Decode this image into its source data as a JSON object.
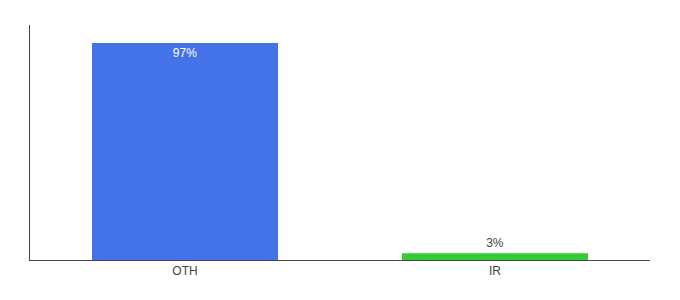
{
  "chart_data": {
    "type": "bar",
    "categories": [
      "OTH",
      "IR"
    ],
    "values": [
      97,
      3
    ],
    "value_labels": [
      "97%",
      "3%"
    ],
    "colors": [
      "#4472e8",
      "#33cc33"
    ],
    "ylim": [
      0,
      105
    ],
    "data_labels": true,
    "tick_labels": "x",
    "grid": false
  }
}
